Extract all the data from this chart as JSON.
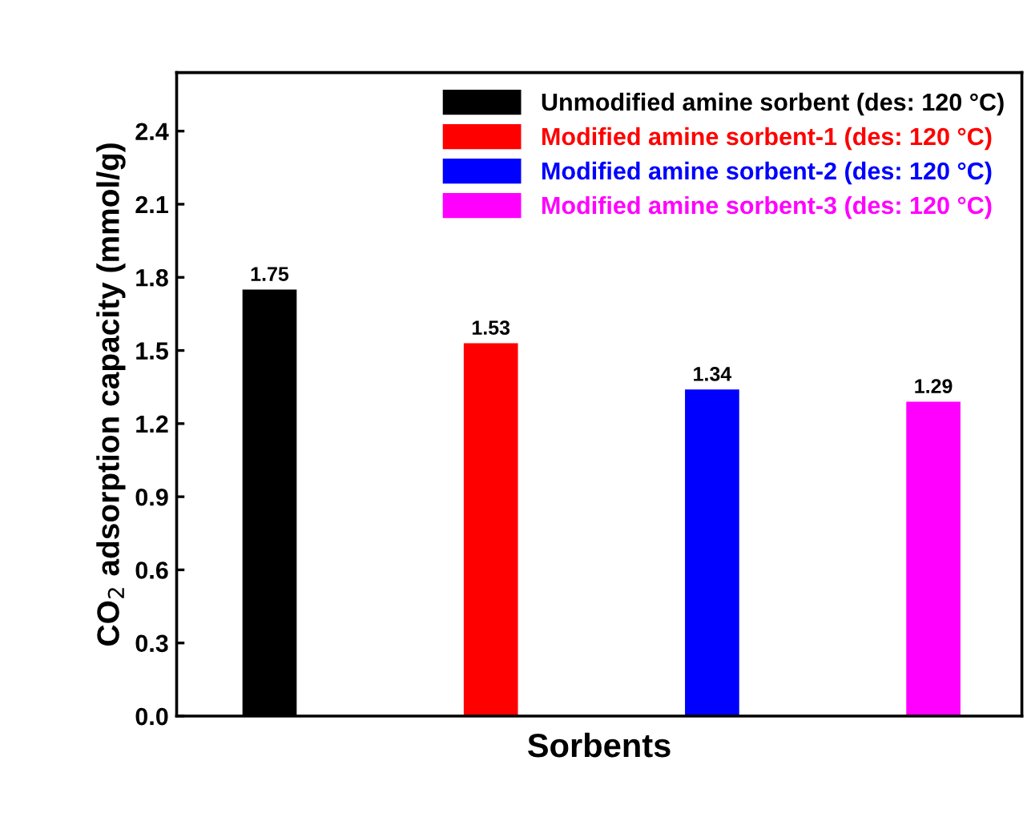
{
  "chart_data": {
    "type": "bar",
    "xlabel": "Sorbents",
    "ylabel": "CO$_{2}$ adsorption capacity (mmol/g)",
    "categories": [
      null,
      null,
      null,
      null
    ],
    "series": [
      {
        "name": "Unmodified amine sorbent (des: 120 °C)",
        "color": "#000000",
        "values": [
          1.75,
          null,
          null,
          null
        ]
      },
      {
        "name": "Modified amine sorbent-1 (des: 120 °C)",
        "color": "#ff0000",
        "values": [
          null,
          1.53,
          null,
          null
        ]
      },
      {
        "name": "Modified amine sorbent-2 (des: 120 °C)",
        "color": "#0000ff",
        "values": [
          null,
          null,
          1.34,
          null
        ]
      },
      {
        "name": "Modified amine sorbent-3 (des: 120 °C)",
        "color": "#ff00ff",
        "values": [
          null,
          null,
          null,
          1.29
        ]
      }
    ],
    "ylim": [
      0,
      2.64
    ],
    "yticks": [
      {
        "value": 0,
        "label": "0.0"
      },
      0.3,
      0.6,
      0.9,
      1.2,
      1.5,
      1.8,
      2.1,
      2.4
    ],
    "data_labels": true,
    "legend": "top right",
    "grid": false
  }
}
